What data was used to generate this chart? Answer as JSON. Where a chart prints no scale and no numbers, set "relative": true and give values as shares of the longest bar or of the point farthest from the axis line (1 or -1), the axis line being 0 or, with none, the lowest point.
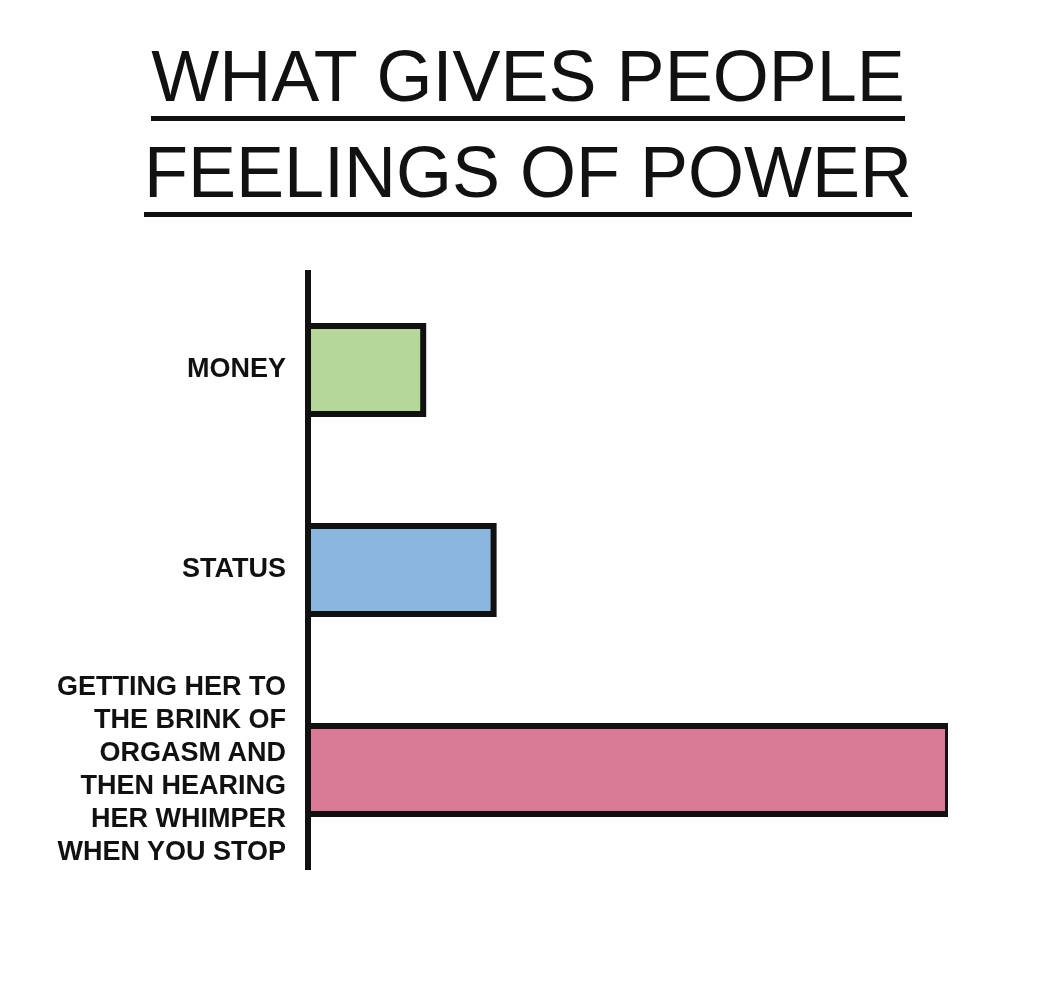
{
  "chart_data": {
    "type": "bar",
    "title": "WHAT GIVES PEOPLE FEELINGS OF POWER",
    "orientation": "horizontal",
    "relative": true,
    "categories": [
      "MONEY",
      "STATUS",
      "GETTING HER TO THE BRINK OF ORGASM AND THEN HEARING HER WHIMPER WHEN YOU STOP"
    ],
    "values": [
      0.18,
      0.29,
      1
    ],
    "colors": [
      "#b5d89a",
      "#8bb6dd",
      "#d97b94"
    ]
  }
}
